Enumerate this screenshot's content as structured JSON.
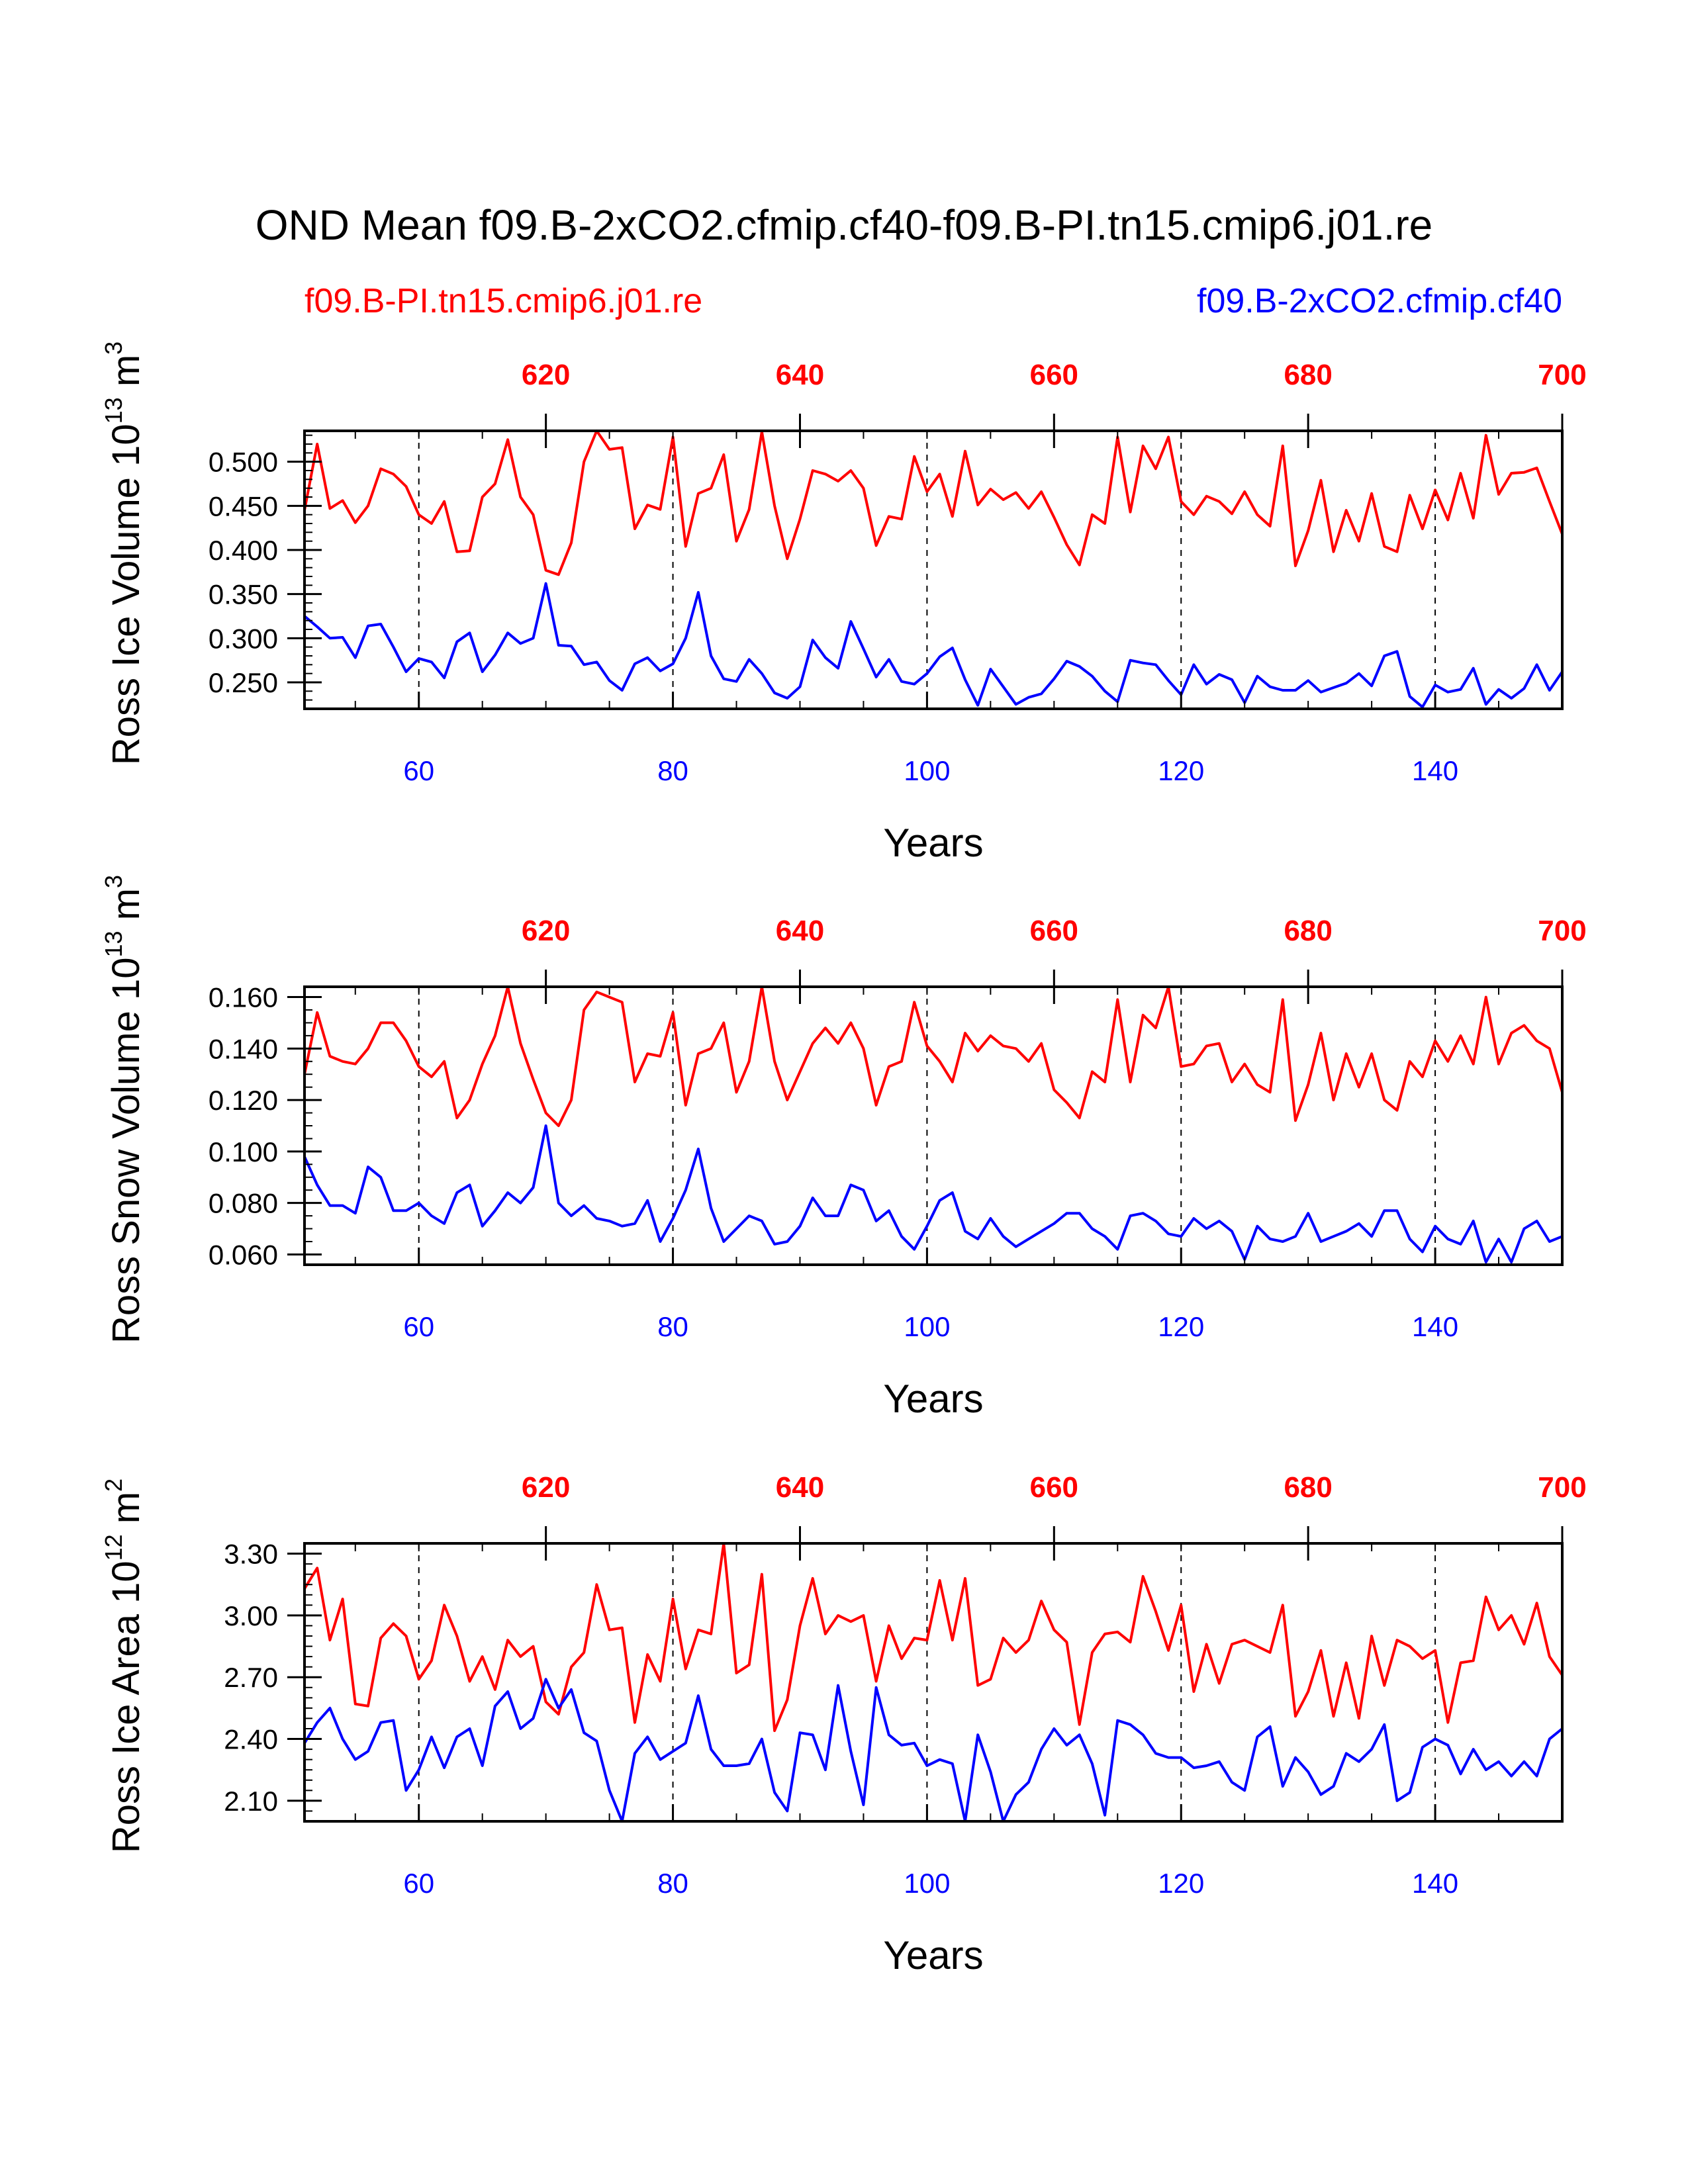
{
  "title": "OND Mean f09.B-2xCO2.cfmip.cf40-f09.B-PI.tn15.cmip6.j01.re",
  "legend": {
    "red_label": "f09.B-PI.tn15.cmip6.j01.re",
    "blue_label": "f09.B-2xCO2.cfmip.cf40"
  },
  "colors": {
    "red": "#ff0000",
    "blue": "#0000ff",
    "axis": "#000000"
  },
  "chart_data": [
    {
      "type": "line",
      "ylabel": "Ross Ice Volume 10",
      "ylabel_exp": "13",
      "ylabel_unit": " m",
      "ylabel_unit_exp": "3",
      "xlabel": "Years",
      "xlim": [
        51,
        150
      ],
      "ylim": [
        0.22,
        0.535
      ],
      "yticks": [
        0.25,
        0.3,
        0.35,
        0.4,
        0.45,
        0.5
      ],
      "ytick_labels": [
        "0.250",
        "0.300",
        "0.350",
        "0.400",
        "0.450",
        "0.500"
      ],
      "yminor_step": 0.01,
      "top_xticks": [
        620,
        640,
        660,
        680,
        700
      ],
      "bottom_xticks": [
        60,
        80,
        100,
        120,
        140
      ],
      "series": [
        {
          "name": "f09.B-PI.tn15.cmip6.j01.re",
          "color": "red",
          "values": [
            0.445,
            0.52,
            0.447,
            0.456,
            0.431,
            0.45,
            0.492,
            0.486,
            0.472,
            0.44,
            0.43,
            0.455,
            0.398,
            0.399,
            0.46,
            0.475,
            0.525,
            0.46,
            0.44,
            0.377,
            0.372,
            0.408,
            0.5,
            0.535,
            0.514,
            0.516,
            0.424,
            0.451,
            0.446,
            0.528,
            0.404,
            0.464,
            0.47,
            0.508,
            0.41,
            0.446,
            0.534,
            0.45,
            0.39,
            0.435,
            0.49,
            0.486,
            0.478,
            0.49,
            0.47,
            0.405,
            0.438,
            0.435,
            0.506,
            0.466,
            0.486,
            0.438,
            0.512,
            0.451,
            0.469,
            0.457,
            0.465,
            0.447,
            0.466,
            0.437,
            0.406,
            0.383,
            0.44,
            0.43,
            0.528,
            0.443,
            0.518,
            0.492,
            0.528,
            0.455,
            0.44,
            0.461,
            0.455,
            0.441,
            0.466,
            0.44,
            0.427,
            0.518,
            0.382,
            0.422,
            0.479,
            0.398,
            0.445,
            0.41,
            0.464,
            0.404,
            0.398,
            0.462,
            0.424,
            0.468,
            0.434,
            0.487,
            0.436,
            0.53,
            0.463,
            0.487,
            0.488,
            0.493,
            0.455,
            0.418
          ]
        },
        {
          "name": "f09.B-2xCO2.cfmip.cf40",
          "color": "blue",
          "values": [
            0.325,
            0.313,
            0.3,
            0.301,
            0.278,
            0.314,
            0.316,
            0.29,
            0.262,
            0.277,
            0.273,
            0.255,
            0.296,
            0.306,
            0.262,
            0.281,
            0.306,
            0.294,
            0.3,
            0.362,
            0.292,
            0.291,
            0.27,
            0.273,
            0.252,
            0.241,
            0.271,
            0.278,
            0.263,
            0.271,
            0.3,
            0.352,
            0.28,
            0.254,
            0.251,
            0.276,
            0.26,
            0.238,
            0.232,
            0.245,
            0.298,
            0.278,
            0.266,
            0.319,
            0.288,
            0.256,
            0.276,
            0.251,
            0.248,
            0.26,
            0.279,
            0.289,
            0.253,
            0.224,
            0.265,
            0.245,
            0.225,
            0.233,
            0.237,
            0.254,
            0.274,
            0.268,
            0.257,
            0.24,
            0.228,
            0.275,
            0.272,
            0.27,
            0.252,
            0.236,
            0.27,
            0.248,
            0.259,
            0.253,
            0.227,
            0.257,
            0.245,
            0.241,
            0.241,
            0.252,
            0.239,
            0.244,
            0.249,
            0.26,
            0.246,
            0.28,
            0.285,
            0.234,
            0.222,
            0.247,
            0.239,
            0.242,
            0.266,
            0.225,
            0.242,
            0.232,
            0.243,
            0.27,
            0.241,
            0.262
          ]
        }
      ]
    },
    {
      "type": "line",
      "ylabel": "Ross Snow Volume 10",
      "ylabel_exp": "13",
      "ylabel_unit": " m",
      "ylabel_unit_exp": "3",
      "xlabel": "Years",
      "xlim": [
        51,
        150
      ],
      "ylim": [
        0.056,
        0.164
      ],
      "yticks": [
        0.06,
        0.08,
        0.1,
        0.12,
        0.14,
        0.16
      ],
      "ytick_labels": [
        "0.060",
        "0.080",
        "0.100",
        "0.120",
        "0.140",
        "0.160"
      ],
      "yminor_step": 0.005,
      "top_xticks": [
        620,
        640,
        660,
        680,
        700
      ],
      "bottom_xticks": [
        60,
        80,
        100,
        120,
        140
      ],
      "series": [
        {
          "name": "f09.B-PI.tn15.cmip6.j01.re",
          "color": "red",
          "values": [
            0.13,
            0.154,
            0.137,
            0.135,
            0.134,
            0.14,
            0.15,
            0.15,
            0.143,
            0.133,
            0.129,
            0.135,
            0.113,
            0.12,
            0.134,
            0.145,
            0.164,
            0.142,
            0.128,
            0.115,
            0.11,
            0.12,
            0.155,
            0.162,
            0.16,
            0.158,
            0.127,
            0.138,
            0.137,
            0.154,
            0.118,
            0.138,
            0.14,
            0.15,
            0.123,
            0.135,
            0.164,
            0.135,
            0.12,
            0.131,
            0.142,
            0.148,
            0.142,
            0.15,
            0.14,
            0.118,
            0.133,
            0.135,
            0.158,
            0.141,
            0.135,
            0.127,
            0.146,
            0.139,
            0.145,
            0.141,
            0.14,
            0.135,
            0.142,
            0.124,
            0.119,
            0.113,
            0.131,
            0.127,
            0.159,
            0.127,
            0.153,
            0.148,
            0.164,
            0.133,
            0.134,
            0.141,
            0.142,
            0.127,
            0.134,
            0.126,
            0.123,
            0.159,
            0.112,
            0.126,
            0.146,
            0.12,
            0.138,
            0.125,
            0.138,
            0.12,
            0.116,
            0.135,
            0.129,
            0.143,
            0.135,
            0.145,
            0.134,
            0.16,
            0.134,
            0.146,
            0.149,
            0.143,
            0.14,
            0.123
          ]
        },
        {
          "name": "f09.B-2xCO2.cfmip.cf40",
          "color": "blue",
          "values": [
            0.098,
            0.087,
            0.079,
            0.079,
            0.076,
            0.094,
            0.09,
            0.077,
            0.077,
            0.08,
            0.075,
            0.072,
            0.084,
            0.087,
            0.071,
            0.077,
            0.084,
            0.08,
            0.086,
            0.11,
            0.08,
            0.075,
            0.079,
            0.074,
            0.073,
            0.071,
            0.072,
            0.081,
            0.065,
            0.074,
            0.085,
            0.101,
            0.078,
            0.065,
            0.07,
            0.075,
            0.073,
            0.064,
            0.065,
            0.071,
            0.082,
            0.075,
            0.075,
            0.087,
            0.085,
            0.073,
            0.077,
            0.067,
            0.062,
            0.071,
            0.081,
            0.084,
            0.069,
            0.066,
            0.074,
            0.067,
            0.063,
            0.066,
            0.069,
            0.072,
            0.076,
            0.076,
            0.07,
            0.067,
            0.062,
            0.075,
            0.076,
            0.073,
            0.068,
            0.067,
            0.074,
            0.07,
            0.073,
            0.069,
            0.058,
            0.071,
            0.066,
            0.065,
            0.067,
            0.076,
            0.065,
            0.067,
            0.069,
            0.072,
            0.067,
            0.077,
            0.077,
            0.066,
            0.061,
            0.071,
            0.066,
            0.064,
            0.073,
            0.057,
            0.066,
            0.057,
            0.07,
            0.073,
            0.065,
            0.067
          ]
        }
      ]
    },
    {
      "type": "line",
      "ylabel": "Ross Ice Area 10",
      "ylabel_exp": "12",
      "ylabel_unit": " m",
      "ylabel_unit_exp": "2",
      "xlabel": "Years",
      "xlim": [
        51,
        150
      ],
      "ylim": [
        2.0,
        3.35
      ],
      "yticks": [
        2.1,
        2.4,
        2.7,
        3.0,
        3.3
      ],
      "ytick_labels": [
        "2.10",
        "2.40",
        "2.70",
        "3.00",
        "3.30"
      ],
      "yminor_step": 0.05,
      "top_xticks": [
        620,
        640,
        660,
        680,
        700
      ],
      "bottom_xticks": [
        60,
        80,
        100,
        120,
        140
      ],
      "series": [
        {
          "name": "f09.B-PI.tn15.cmip6.j01.re",
          "color": "red",
          "values": [
            3.13,
            3.23,
            2.88,
            3.08,
            2.57,
            2.56,
            2.89,
            2.96,
            2.9,
            2.69,
            2.78,
            3.05,
            2.9,
            2.68,
            2.8,
            2.64,
            2.88,
            2.8,
            2.85,
            2.58,
            2.52,
            2.75,
            2.82,
            3.15,
            2.93,
            2.94,
            2.48,
            2.81,
            2.68,
            3.08,
            2.74,
            2.93,
            2.91,
            3.35,
            2.72,
            2.76,
            3.2,
            2.44,
            2.59,
            2.95,
            3.18,
            2.91,
            3.0,
            2.97,
            3.0,
            2.68,
            2.95,
            2.79,
            2.89,
            2.88,
            3.17,
            2.88,
            3.18,
            2.66,
            2.69,
            2.89,
            2.82,
            2.88,
            3.07,
            2.93,
            2.87,
            2.47,
            2.82,
            2.91,
            2.92,
            2.87,
            3.19,
            3.02,
            2.83,
            3.05,
            2.63,
            2.86,
            2.67,
            2.86,
            2.88,
            2.85,
            2.82,
            3.05,
            2.51,
            2.63,
            2.83,
            2.51,
            2.77,
            2.5,
            2.9,
            2.66,
            2.88,
            2.85,
            2.79,
            2.83,
            2.48,
            2.77,
            2.78,
            3.09,
            2.93,
            3.0,
            2.86,
            3.06,
            2.8,
            2.71
          ]
        },
        {
          "name": "f09.B-2xCO2.cfmip.cf40",
          "color": "blue",
          "values": [
            2.38,
            2.48,
            2.55,
            2.4,
            2.3,
            2.34,
            2.48,
            2.49,
            2.15,
            2.25,
            2.41,
            2.26,
            2.41,
            2.45,
            2.27,
            2.56,
            2.63,
            2.45,
            2.5,
            2.69,
            2.55,
            2.64,
            2.43,
            2.39,
            2.15,
            2.0,
            2.33,
            2.41,
            2.3,
            2.34,
            2.38,
            2.61,
            2.35,
            2.27,
            2.27,
            2.28,
            2.4,
            2.14,
            2.05,
            2.43,
            2.42,
            2.25,
            2.66,
            2.34,
            2.08,
            2.65,
            2.42,
            2.37,
            2.38,
            2.27,
            2.3,
            2.28,
            2.0,
            2.42,
            2.24,
            2.0,
            2.13,
            2.19,
            2.35,
            2.45,
            2.37,
            2.42,
            2.28,
            2.03,
            2.49,
            2.47,
            2.42,
            2.33,
            2.31,
            2.31,
            2.26,
            2.27,
            2.29,
            2.19,
            2.15,
            2.41,
            2.46,
            2.17,
            2.31,
            2.24,
            2.13,
            2.17,
            2.33,
            2.29,
            2.35,
            2.47,
            2.1,
            2.14,
            2.36,
            2.4,
            2.37,
            2.23,
            2.35,
            2.25,
            2.29,
            2.22,
            2.29,
            2.22,
            2.4,
            2.45
          ]
        }
      ]
    }
  ]
}
